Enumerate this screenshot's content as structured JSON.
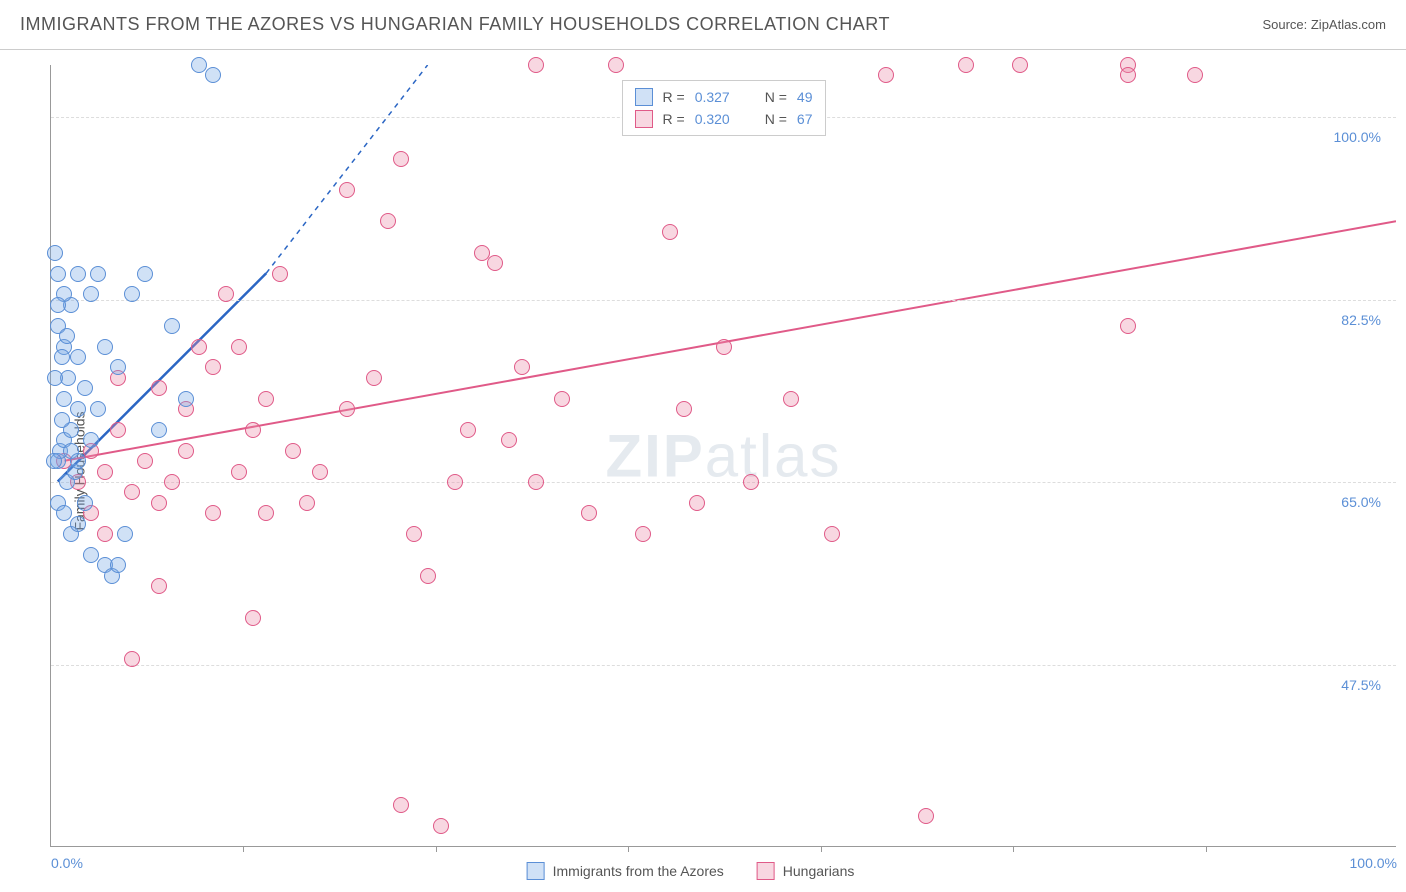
{
  "header": {
    "title": "IMMIGRANTS FROM THE AZORES VS HUNGARIAN FAMILY HOUSEHOLDS CORRELATION CHART",
    "source_label": "Source: ",
    "source_value": "ZipAtlas.com"
  },
  "watermark": {
    "prefix": "ZIP",
    "suffix": "atlas"
  },
  "chart": {
    "type": "scatter",
    "ylabel": "Family Households",
    "xlim": [
      0,
      100
    ],
    "ylim": [
      30,
      105
    ],
    "xtick_positions": [
      0,
      14.3,
      28.6,
      42.9,
      57.2,
      71.5,
      85.8,
      100
    ],
    "xtick_labels_show": {
      "0": "0.0%",
      "100": "100.0%"
    },
    "ytick_positions": [
      47.5,
      65.0,
      82.5,
      100.0
    ],
    "ytick_labels": [
      "47.5%",
      "65.0%",
      "82.5%",
      "100.0%"
    ],
    "background_color": "#ffffff",
    "grid_color": "#dddddd",
    "axis_color": "#999999",
    "label_color": "#5b8fd6",
    "point_radius": 8,
    "series": [
      {
        "name": "Immigrants from the Azores",
        "fill_color": "rgba(120,170,230,0.35)",
        "stroke_color": "#5b8fd6",
        "r_value": "0.327",
        "n_value": "49",
        "trend": {
          "x1": 0.5,
          "y1": 65,
          "x2": 16,
          "y2": 85,
          "dash_x2": 28,
          "dash_y2": 105,
          "color": "#2b66c4",
          "width": 2.5
        },
        "points": [
          [
            0.5,
            67
          ],
          [
            0.7,
            68
          ],
          [
            1.0,
            69
          ],
          [
            1.2,
            65
          ],
          [
            1.5,
            70
          ],
          [
            1.8,
            66
          ],
          [
            2.0,
            72
          ],
          [
            0.8,
            71
          ],
          [
            1.0,
            78
          ],
          [
            1.3,
            75
          ],
          [
            2.0,
            77
          ],
          [
            2.5,
            74
          ],
          [
            0.5,
            80
          ],
          [
            1.5,
            82
          ],
          [
            2.0,
            85
          ],
          [
            3.0,
            83
          ],
          [
            3.5,
            85
          ],
          [
            4.0,
            78
          ],
          [
            5.0,
            76
          ],
          [
            6.0,
            83
          ],
          [
            7.0,
            85
          ],
          [
            8.0,
            70
          ],
          [
            9.0,
            80
          ],
          [
            10.0,
            73
          ],
          [
            11.0,
            105
          ],
          [
            12.0,
            104
          ],
          [
            0.3,
            87
          ],
          [
            0.5,
            85
          ],
          [
            1.0,
            83
          ],
          [
            0.2,
            67
          ],
          [
            0.5,
            63
          ],
          [
            1.0,
            62
          ],
          [
            1.5,
            60
          ],
          [
            2.0,
            61
          ],
          [
            3.0,
            58
          ],
          [
            4.0,
            57
          ],
          [
            4.5,
            56
          ],
          [
            5.0,
            57
          ],
          [
            1.0,
            73
          ],
          [
            1.5,
            68
          ],
          [
            3.0,
            69
          ],
          [
            3.5,
            72
          ],
          [
            0.3,
            75
          ],
          [
            0.8,
            77
          ],
          [
            1.2,
            79
          ],
          [
            5.5,
            60
          ],
          [
            0.5,
            82
          ],
          [
            2.5,
            63
          ],
          [
            2.0,
            67
          ]
        ]
      },
      {
        "name": "Hungarians",
        "fill_color": "rgba(235,140,170,0.35)",
        "stroke_color": "#e05a88",
        "r_value": "0.320",
        "n_value": "67",
        "trend": {
          "x1": 1,
          "y1": 67,
          "x2": 100,
          "y2": 90,
          "color": "#e05a88",
          "width": 2
        },
        "points": [
          [
            1,
            67
          ],
          [
            2,
            65
          ],
          [
            3,
            68
          ],
          [
            4,
            66
          ],
          [
            5,
            70
          ],
          [
            6,
            64
          ],
          [
            7,
            67
          ],
          [
            8,
            63
          ],
          [
            9,
            65
          ],
          [
            10,
            68
          ],
          [
            5,
            75
          ],
          [
            8,
            74
          ],
          [
            10,
            72
          ],
          [
            12,
            76
          ],
          [
            14,
            78
          ],
          [
            15,
            70
          ],
          [
            16,
            73
          ],
          [
            17,
            85
          ],
          [
            13,
            83
          ],
          [
            18,
            68
          ],
          [
            19,
            63
          ],
          [
            20,
            66
          ],
          [
            22,
            72
          ],
          [
            22,
            93
          ],
          [
            24,
            75
          ],
          [
            25,
            90
          ],
          [
            26,
            96
          ],
          [
            27,
            60
          ],
          [
            28,
            56
          ],
          [
            29,
            32
          ],
          [
            30,
            65
          ],
          [
            31,
            70
          ],
          [
            32,
            87
          ],
          [
            33,
            86
          ],
          [
            34,
            69
          ],
          [
            35,
            76
          ],
          [
            36,
            105
          ],
          [
            36,
            65
          ],
          [
            38,
            73
          ],
          [
            40,
            62
          ],
          [
            42,
            105
          ],
          [
            44,
            60
          ],
          [
            46,
            89
          ],
          [
            47,
            72
          ],
          [
            48,
            63
          ],
          [
            50,
            78
          ],
          [
            52,
            65
          ],
          [
            55,
            73
          ],
          [
            58,
            60
          ],
          [
            62,
            104
          ],
          [
            65,
            33
          ],
          [
            68,
            105
          ],
          [
            72,
            105
          ],
          [
            80,
            105
          ],
          [
            80,
            80
          ],
          [
            8,
            55
          ],
          [
            15,
            52
          ],
          [
            6,
            48
          ],
          [
            3,
            62
          ],
          [
            4,
            60
          ],
          [
            85,
            104
          ],
          [
            26,
            34
          ],
          [
            80,
            104
          ],
          [
            12,
            62
          ],
          [
            14,
            66
          ],
          [
            16,
            62
          ],
          [
            11,
            78
          ]
        ]
      }
    ]
  },
  "legend_top": {
    "r_prefix": "R = ",
    "n_prefix": "N = "
  },
  "legend_bottom": {
    "items": [
      "Immigrants from the Azores",
      "Hungarians"
    ]
  }
}
